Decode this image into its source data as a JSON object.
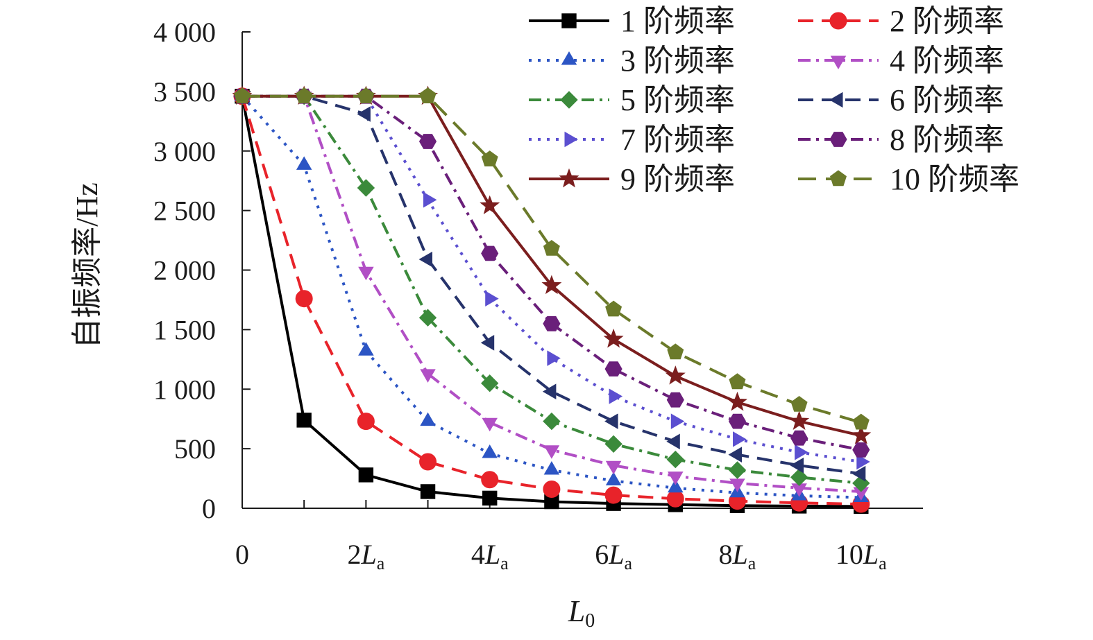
{
  "chart_data": {
    "type": "line",
    "x_var": "L",
    "x_sub": "0",
    "y_label": "自振频率/Hz",
    "x": [
      0,
      1,
      2,
      3,
      4,
      5,
      6,
      7,
      8,
      9,
      10
    ],
    "xlim": [
      0,
      11
    ],
    "ylim": [
      0,
      4000
    ],
    "y_ticks": [
      0,
      500,
      1000,
      1500,
      2000,
      2500,
      3000,
      3500,
      4000
    ],
    "y_tick_labels": [
      "0",
      "500",
      "1 000",
      "1 500",
      "2 000",
      "2 500",
      "3 000",
      "3 500",
      "4 000"
    ],
    "x_ticks": [
      {
        "x": 0,
        "main": "0",
        "var": "",
        "sub": ""
      },
      {
        "x": 2,
        "main": "2",
        "var": "L",
        "sub": "a"
      },
      {
        "x": 4,
        "main": "4",
        "var": "L",
        "sub": "a"
      },
      {
        "x": 6,
        "main": "6",
        "var": "L",
        "sub": "a"
      },
      {
        "x": 8,
        "main": "8",
        "var": "L",
        "sub": "a"
      },
      {
        "x": 10,
        "main": "10",
        "var": "L",
        "sub": "a"
      }
    ],
    "grid": false,
    "legend_position": "top-right",
    "series": [
      {
        "name": "1 阶频率",
        "color": "#000000",
        "dash": "solid",
        "marker": "square",
        "values": [
          3460,
          740,
          280,
          140,
          85,
          55,
          40,
          30,
          22,
          18,
          15
        ]
      },
      {
        "name": "2 阶频率",
        "color": "#e8232a",
        "dash": "dashed",
        "marker": "circle",
        "values": [
          3460,
          1760,
          730,
          390,
          240,
          160,
          110,
          80,
          60,
          45,
          35
        ]
      },
      {
        "name": "3 阶频率",
        "color": "#2c55c4",
        "dash": "dotted",
        "marker": "triangle-up",
        "values": [
          3460,
          2880,
          1320,
          730,
          460,
          320,
          230,
          170,
          130,
          105,
          90
        ]
      },
      {
        "name": "4 阶频率",
        "color": "#b14fc5",
        "dash": "dashdot",
        "marker": "triangle-down",
        "values": [
          3460,
          3460,
          1990,
          1130,
          720,
          490,
          360,
          270,
          210,
          170,
          140
        ]
      },
      {
        "name": "5 阶频率",
        "color": "#3b8a3b",
        "dash": "dashdot",
        "marker": "diamond",
        "values": [
          3460,
          3460,
          2690,
          1600,
          1050,
          730,
          540,
          410,
          320,
          260,
          210
        ]
      },
      {
        "name": "6 阶频率",
        "color": "#26336b",
        "dash": "dashed",
        "marker": "triangle-left",
        "values": [
          3460,
          3460,
          3310,
          2090,
          1390,
          980,
          730,
          560,
          450,
          360,
          290
        ]
      },
      {
        "name": "7 阶频率",
        "color": "#5b4fd0",
        "dash": "dotted",
        "marker": "triangle-right",
        "values": [
          3460,
          3460,
          3460,
          2590,
          1760,
          1260,
          940,
          730,
          580,
          470,
          390
        ]
      },
      {
        "name": "8 阶频率",
        "color": "#6a1f7a",
        "dash": "dashdot",
        "marker": "hexagon",
        "values": [
          3460,
          3460,
          3460,
          3080,
          2140,
          1550,
          1170,
          910,
          730,
          590,
          490
        ]
      },
      {
        "name": "9 阶频率",
        "color": "#7b1e1e",
        "dash": "solid",
        "marker": "star",
        "values": [
          3460,
          3460,
          3460,
          3460,
          2540,
          1870,
          1420,
          1110,
          890,
          730,
          610
        ]
      },
      {
        "name": "10 阶频率",
        "color": "#6b7a2a",
        "dash": "longdash",
        "marker": "pentagon",
        "values": [
          3460,
          3460,
          3460,
          3460,
          2930,
          2180,
          1670,
          1310,
          1060,
          870,
          720
        ]
      }
    ]
  }
}
